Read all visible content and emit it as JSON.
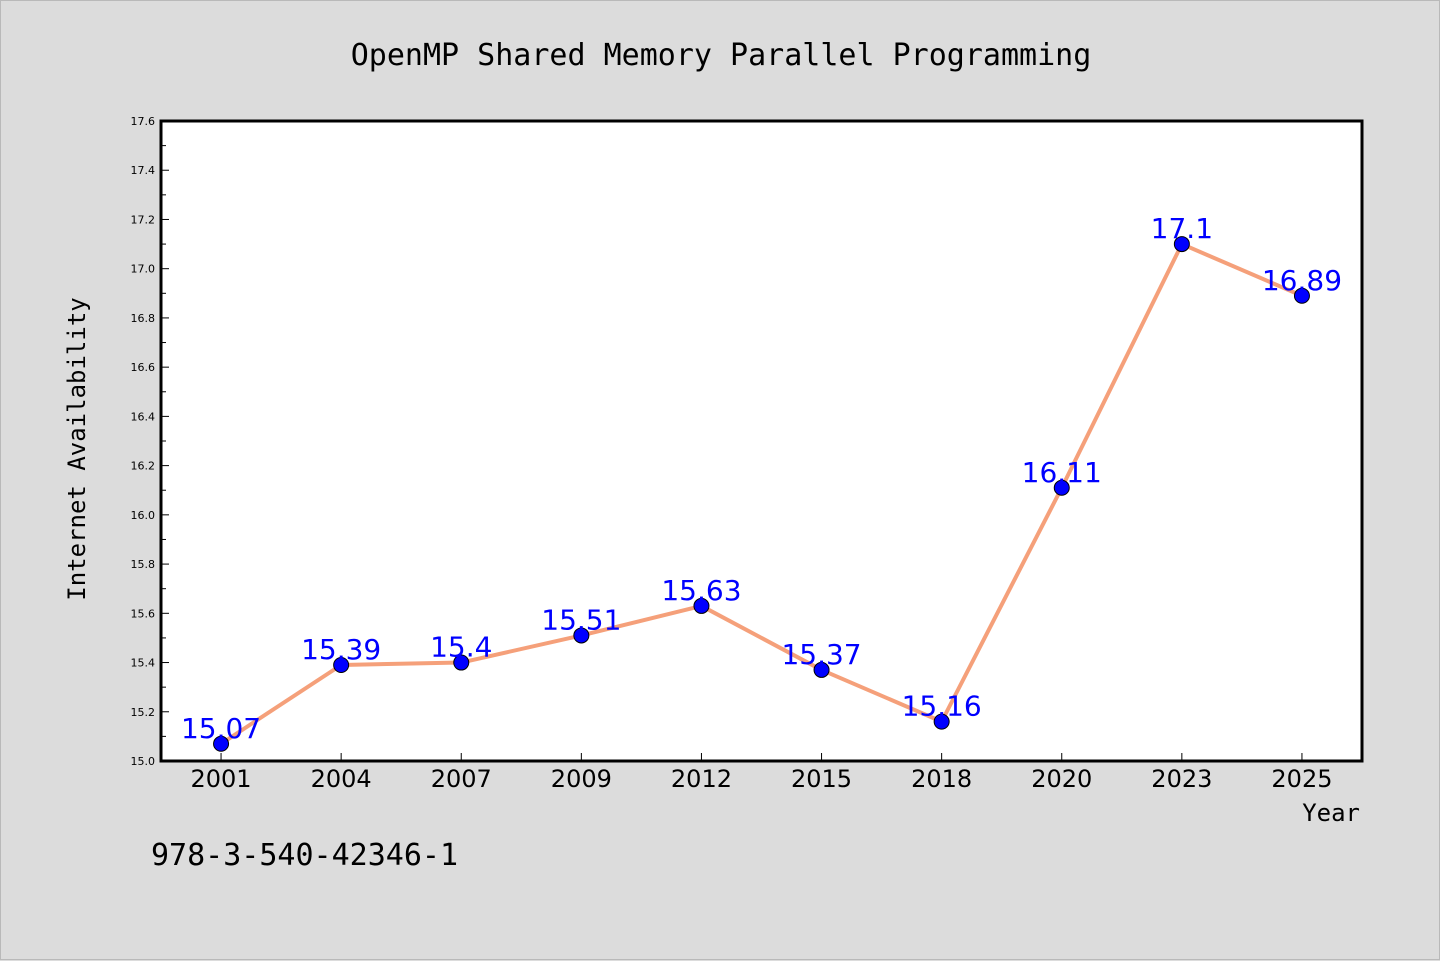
{
  "chart_data": {
    "type": "line",
    "title": "OpenMP Shared Memory Parallel Programming",
    "xlabel": "Year",
    "ylabel": "Internet Availability",
    "categories": [
      "2001",
      "2004",
      "2007",
      "2009",
      "2012",
      "2015",
      "2018",
      "2020",
      "2023",
      "2025"
    ],
    "series": [
      {
        "values": [
          15.07,
          15.39,
          15.4,
          15.51,
          15.63,
          15.37,
          15.16,
          16.11,
          17.1,
          16.89
        ],
        "labels": [
          "15.07",
          "15.39",
          "15.4",
          "15.51",
          "15.63",
          "15.37",
          "15.16",
          "16.11",
          "17.1",
          "16.89"
        ],
        "line_color": "#f5a07a",
        "marker_color": "#0000ff"
      }
    ],
    "ylim": [
      15.0,
      17.6
    ],
    "yticks": [
      "15.0",
      "15.2",
      "15.4",
      "15.6",
      "15.8",
      "16.0",
      "16.2",
      "16.4",
      "16.6",
      "16.8",
      "17.0",
      "17.2",
      "17.4",
      "17.6"
    ],
    "grid": false,
    "legend": "none",
    "plot_background": "#ffffff",
    "page_background": "#dcdcdc"
  },
  "footnote": "978-3-540-42346-1"
}
